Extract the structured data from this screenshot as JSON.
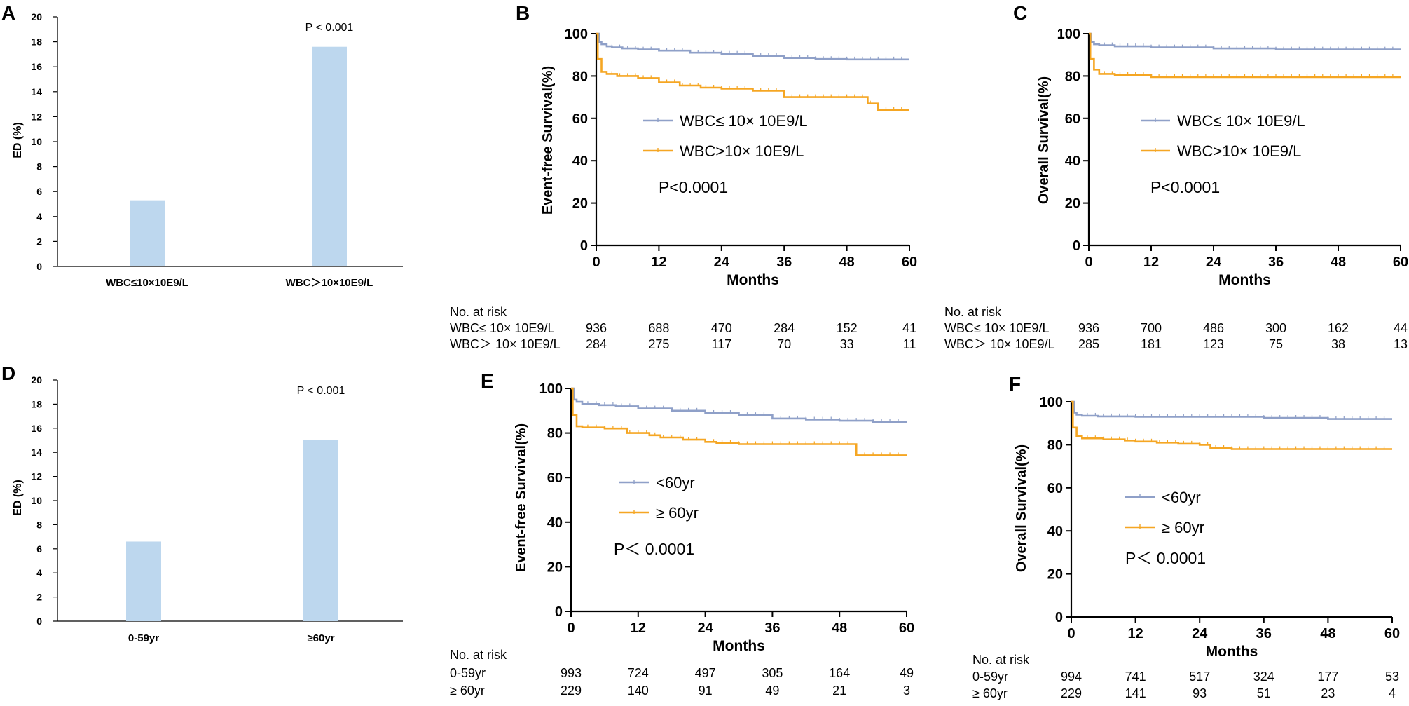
{
  "chart_data": [
    {
      "panel": "A",
      "type": "bar",
      "categories": [
        "WBC≤10×10E9/L",
        "WBC＞10×10E9/L"
      ],
      "values": [
        5.3,
        17.6
      ],
      "ylabel": "ED (%)",
      "ylim": [
        0,
        20
      ],
      "yticks": [
        "0",
        "2",
        "4",
        "6",
        "8",
        "10",
        "12",
        "14",
        "16",
        "18",
        "20"
      ],
      "annotation": "P < 0.001",
      "bar_color": "#bdd7ee"
    },
    {
      "panel": "B",
      "type": "line",
      "xlabel": "Months",
      "ylabel": "Event-free Survival(%)",
      "xlim": [
        0,
        60
      ],
      "ylim": [
        0,
        100
      ],
      "xticks": [
        "0",
        "12",
        "24",
        "36",
        "48",
        "60"
      ],
      "yticks": [
        "0",
        "20",
        "40",
        "60",
        "80",
        "100"
      ],
      "series": [
        {
          "name": "WBC≤ 10× 10E9/L",
          "color": "#8fa0c8",
          "x": [
            0,
            0.5,
            1,
            2,
            3,
            5,
            8,
            12,
            18,
            24,
            30,
            36,
            42,
            48,
            54,
            60
          ],
          "y": [
            100,
            96,
            95,
            94,
            93.5,
            93,
            92.5,
            92,
            91,
            90.5,
            89.5,
            88.5,
            88,
            87.8,
            87.8,
            87.8
          ]
        },
        {
          "name": "WBC>10× 10E9/L",
          "color": "#f5a623",
          "x": [
            0,
            0.3,
            1,
            2,
            4,
            8,
            12,
            16,
            20,
            24,
            30,
            34,
            36,
            42,
            48,
            51,
            52,
            54,
            56,
            60
          ],
          "y": [
            100,
            88,
            82,
            81,
            80,
            79,
            77,
            75.5,
            74.5,
            74,
            73,
            73,
            70,
            70,
            70,
            70,
            67,
            64,
            64,
            64
          ]
        }
      ],
      "annotation": "P<0.0001",
      "risk_table": {
        "header": "No. at risk",
        "rows": [
          {
            "label": "WBC≤ 10× 10E9/L",
            "values": [
              "936",
              "688",
              "470",
              "284",
              "152",
              "41"
            ]
          },
          {
            "label": "WBC＞ 10× 10E9/L",
            "values": [
              "284",
              "275",
              "117",
              "70",
              "33",
              "11"
            ]
          }
        ]
      }
    },
    {
      "panel": "C",
      "type": "line",
      "xlabel": "Months",
      "ylabel": "Overall Survival(%)",
      "xlim": [
        0,
        60
      ],
      "ylim": [
        0,
        100
      ],
      "xticks": [
        "0",
        "12",
        "24",
        "36",
        "48",
        "60"
      ],
      "yticks": [
        "0",
        "20",
        "40",
        "60",
        "80",
        "100"
      ],
      "series": [
        {
          "name": "WBC≤ 10× 10E9/L",
          "color": "#8fa0c8",
          "x": [
            0,
            0.5,
            1,
            2,
            5,
            12,
            24,
            36,
            48,
            60
          ],
          "y": [
            100,
            96,
            95,
            94.5,
            94,
            93.5,
            93,
            92.5,
            92.5,
            92.5
          ]
        },
        {
          "name": "WBC>10× 10E9/L",
          "color": "#f5a623",
          "x": [
            0,
            0.3,
            1,
            2,
            5,
            12,
            24,
            36,
            48,
            60
          ],
          "y": [
            100,
            88,
            83,
            81,
            80.5,
            79.5,
            79.5,
            79.5,
            79.5,
            79.5
          ]
        }
      ],
      "annotation": "P<0.0001",
      "risk_table": {
        "header": "No. at risk",
        "rows": [
          {
            "label": "WBC≤ 10× 10E9/L",
            "values": [
              "936",
              "700",
              "486",
              "300",
              "162",
              "44"
            ]
          },
          {
            "label": "WBC＞ 10× 10E9/L",
            "values": [
              "285",
              "181",
              "123",
              "75",
              "38",
              "13"
            ]
          }
        ]
      }
    },
    {
      "panel": "D",
      "type": "bar",
      "categories": [
        "0-59yr",
        "≥60yr"
      ],
      "values": [
        6.6,
        15.0
      ],
      "ylabel": "ED (%)",
      "ylim": [
        0,
        20
      ],
      "yticks": [
        "0",
        "2",
        "4",
        "6",
        "8",
        "10",
        "12",
        "14",
        "16",
        "18",
        "20"
      ],
      "annotation": "P < 0.001",
      "bar_color": "#bdd7ee"
    },
    {
      "panel": "E",
      "type": "line",
      "xlabel": "Months",
      "ylabel": "Event-free Survival(%)",
      "xlim": [
        0,
        60
      ],
      "ylim": [
        0,
        100
      ],
      "xticks": [
        "0",
        "12",
        "24",
        "36",
        "48",
        "60"
      ],
      "yticks": [
        "0",
        "20",
        "40",
        "60",
        "80",
        "100"
      ],
      "series": [
        {
          "name": "<60yr",
          "color": "#8fa0c8",
          "x": [
            0,
            0.5,
            1,
            2,
            5,
            8,
            12,
            18,
            24,
            30,
            36,
            42,
            48,
            54,
            60
          ],
          "y": [
            100,
            95,
            94,
            93,
            92.5,
            92,
            91,
            90,
            89,
            88,
            86.5,
            86,
            85.5,
            85,
            85
          ]
        },
        {
          "name": "≥ 60yr",
          "color": "#f5a623",
          "x": [
            0,
            0.3,
            1,
            2,
            6,
            10,
            14,
            16,
            20,
            24,
            26,
            30,
            36,
            42,
            48,
            50,
            51,
            55,
            60
          ],
          "y": [
            100,
            88,
            83,
            82.5,
            82,
            80,
            79,
            78,
            77,
            76,
            75.5,
            75,
            75,
            75,
            75,
            75,
            70,
            70,
            70
          ]
        }
      ],
      "annotation": "P＜ 0.0001",
      "risk_table": {
        "header": "No. at risk",
        "rows": [
          {
            "label": "0-59yr",
            "values": [
              "993",
              "724",
              "497",
              "305",
              "164",
              "49"
            ]
          },
          {
            "label": "≥ 60yr",
            "values": [
              "229",
              "140",
              "91",
              "49",
              "21",
              "3"
            ]
          }
        ]
      }
    },
    {
      "panel": "F",
      "type": "line",
      "xlabel": "Months",
      "ylabel": "Overall Survival(%)",
      "xlim": [
        0,
        60
      ],
      "ylim": [
        0,
        100
      ],
      "xticks": [
        "0",
        "12",
        "24",
        "36",
        "48",
        "60"
      ],
      "yticks": [
        "0",
        "20",
        "40",
        "60",
        "80",
        "100"
      ],
      "series": [
        {
          "name": "<60yr",
          "color": "#8fa0c8",
          "x": [
            0,
            0.5,
            1,
            2,
            5,
            12,
            24,
            36,
            48,
            60
          ],
          "y": [
            100,
            95,
            94,
            93.5,
            93.2,
            93,
            93,
            92.5,
            92,
            92
          ]
        },
        {
          "name": "≥ 60yr",
          "color": "#f5a623",
          "x": [
            0,
            0.3,
            1,
            2,
            6,
            10,
            12,
            16,
            20,
            24,
            26,
            30,
            36,
            48,
            60
          ],
          "y": [
            100,
            88,
            84,
            83,
            82.5,
            82,
            81.5,
            81,
            80.5,
            80,
            78.5,
            78,
            78,
            78,
            78
          ]
        }
      ],
      "annotation": "P＜ 0.0001",
      "risk_table": {
        "header": "No. at risk",
        "rows": [
          {
            "label": "0-59yr",
            "values": [
              "994",
              "741",
              "517",
              "324",
              "177",
              "53"
            ]
          },
          {
            "label": "≥ 60yr",
            "values": [
              "229",
              "141",
              "93",
              "51",
              "23",
              "4"
            ]
          }
        ]
      }
    }
  ]
}
